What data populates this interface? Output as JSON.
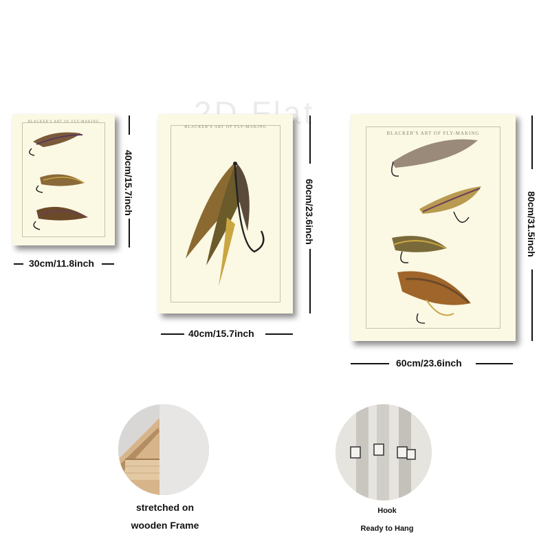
{
  "watermark": "2D Flat",
  "panels": [
    {
      "title": "BLACKER'S ART OF FLY-MAKING",
      "height_label": "40cm/15.7inch",
      "width_label": "30cm/11.8inch",
      "flies": 3
    },
    {
      "title": "BLACKER'S ART OF FLY-MAKING",
      "height_label": "60cm/23.6inch",
      "width_label": "40cm/15.7inch",
      "flies": 1
    },
    {
      "title": "BLACKER'S ART OF FLY-MAKING",
      "height_label": "80cm/31.5inch",
      "width_label": "60cm/23.6inch",
      "flies": 4
    }
  ],
  "details": [
    {
      "caption_line1": "stretched on",
      "caption_line2": "wooden Frame"
    },
    {
      "caption_line1": "Hook",
      "caption_line2": "Ready to Hang"
    }
  ],
  "colors": {
    "canvas": "#fbf8e4",
    "feather_brown": "#6b4a2a",
    "feather_gold": "#c9a640",
    "feather_purple": "#6a3f5a"
  }
}
